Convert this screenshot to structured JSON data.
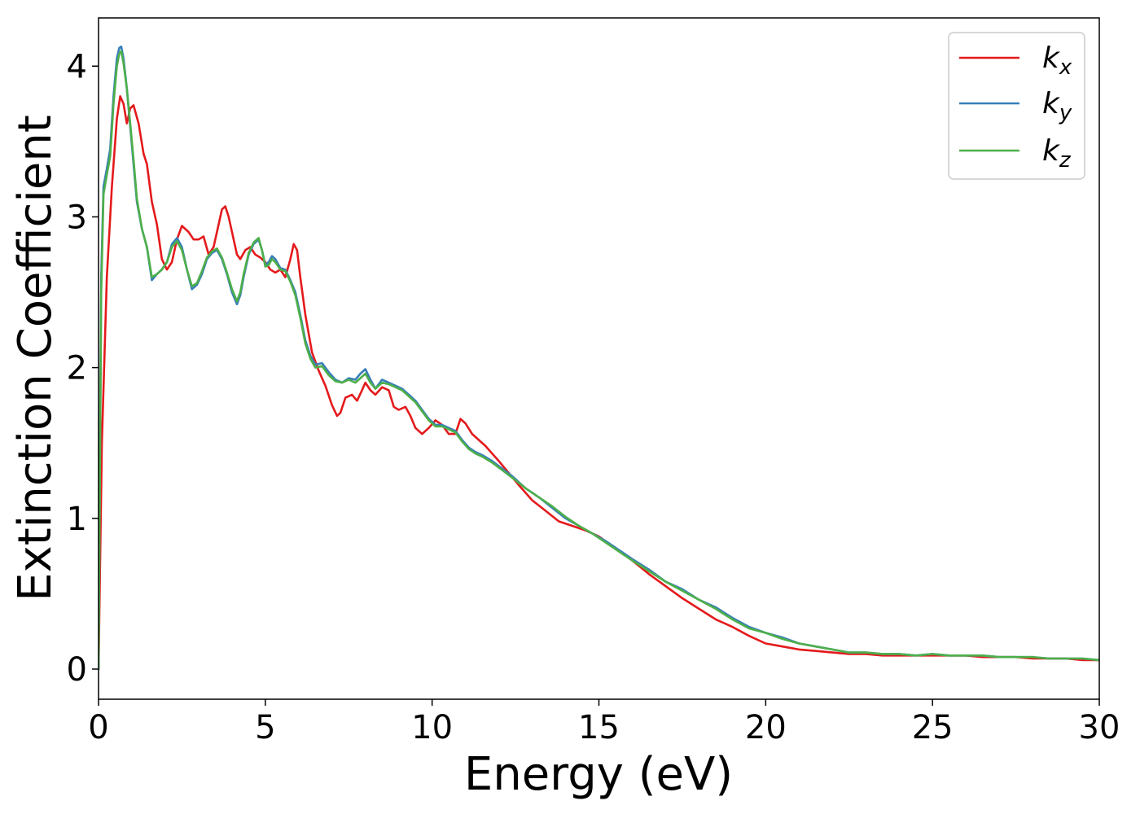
{
  "chart_data": {
    "type": "line",
    "xlabel": "Energy (eV)",
    "ylabel": "Extinction Coefficient",
    "xlim": [
      0,
      30
    ],
    "ylim": [
      -0.2,
      4.32
    ],
    "xticks": [
      0,
      5,
      10,
      15,
      20,
      25,
      30
    ],
    "xtick_labels": [
      "0",
      "5",
      "10",
      "15",
      "20",
      "25",
      "30"
    ],
    "yticks": [
      0,
      1,
      2,
      3,
      4
    ],
    "ytick_labels": [
      "0",
      "1",
      "2",
      "3",
      "4"
    ],
    "grid": false,
    "legend_position": "top-right",
    "series": [
      {
        "name": "k",
        "subscript": "x",
        "color": "#e41a1c",
        "x": [
          0,
          0.1,
          0.25,
          0.4,
          0.55,
          0.65,
          0.75,
          0.85,
          0.95,
          1.05,
          1.2,
          1.35,
          1.45,
          1.6,
          1.75,
          1.9,
          2.05,
          2.2,
          2.35,
          2.5,
          2.7,
          2.85,
          3.0,
          3.15,
          3.3,
          3.45,
          3.6,
          3.7,
          3.8,
          3.9,
          4.0,
          4.15,
          4.25,
          4.4,
          4.55,
          4.7,
          4.85,
          5.0,
          5.15,
          5.3,
          5.45,
          5.6,
          5.75,
          5.85,
          5.95,
          6.05,
          6.2,
          6.4,
          6.6,
          6.8,
          7.0,
          7.15,
          7.25,
          7.4,
          7.6,
          7.75,
          7.9,
          8.0,
          8.15,
          8.3,
          8.5,
          8.7,
          8.85,
          9.0,
          9.2,
          9.35,
          9.5,
          9.7,
          9.9,
          10.1,
          10.3,
          10.5,
          10.7,
          10.85,
          11.0,
          11.2,
          11.4,
          11.6,
          11.8,
          12.0,
          12.3,
          12.6,
          13.0,
          13.4,
          13.8,
          14.2,
          14.6,
          15.0,
          15.5,
          16.0,
          16.5,
          17.0,
          17.5,
          18.0,
          18.5,
          19.0,
          19.5,
          20.0,
          20.5,
          21.0,
          21.5,
          22.0,
          22.5,
          23.0,
          23.5,
          24.0,
          24.5,
          25.0,
          25.5,
          26.0,
          26.5,
          27.0,
          27.5,
          28.0,
          28.5,
          29.0,
          29.5,
          30.0
        ],
        "y": [
          0.0,
          1.5,
          2.6,
          3.2,
          3.65,
          3.8,
          3.75,
          3.62,
          3.72,
          3.74,
          3.62,
          3.42,
          3.35,
          3.1,
          2.95,
          2.72,
          2.65,
          2.7,
          2.85,
          2.94,
          2.9,
          2.85,
          2.85,
          2.87,
          2.75,
          2.8,
          2.95,
          3.05,
          3.07,
          3.0,
          2.9,
          2.75,
          2.72,
          2.78,
          2.8,
          2.75,
          2.73,
          2.7,
          2.65,
          2.63,
          2.65,
          2.6,
          2.72,
          2.82,
          2.78,
          2.6,
          2.35,
          2.1,
          1.98,
          1.88,
          1.75,
          1.68,
          1.7,
          1.8,
          1.82,
          1.78,
          1.85,
          1.9,
          1.85,
          1.82,
          1.87,
          1.85,
          1.74,
          1.72,
          1.74,
          1.68,
          1.6,
          1.56,
          1.6,
          1.65,
          1.62,
          1.56,
          1.56,
          1.66,
          1.63,
          1.56,
          1.52,
          1.48,
          1.43,
          1.38,
          1.3,
          1.22,
          1.12,
          1.05,
          0.98,
          0.95,
          0.92,
          0.88,
          0.8,
          0.72,
          0.63,
          0.55,
          0.47,
          0.4,
          0.33,
          0.28,
          0.22,
          0.17,
          0.15,
          0.13,
          0.12,
          0.11,
          0.1,
          0.1,
          0.09,
          0.09,
          0.09,
          0.09,
          0.09,
          0.09,
          0.08,
          0.08,
          0.08,
          0.07,
          0.07,
          0.07,
          0.06,
          0.06
        ]
      },
      {
        "name": "k",
        "subscript": "y",
        "color": "#377eb8",
        "x": [
          0,
          0.08,
          0.15,
          0.25,
          0.35,
          0.45,
          0.55,
          0.62,
          0.68,
          0.75,
          0.85,
          0.95,
          1.05,
          1.15,
          1.3,
          1.45,
          1.6,
          1.75,
          1.9,
          2.05,
          2.2,
          2.35,
          2.5,
          2.65,
          2.8,
          2.95,
          3.1,
          3.25,
          3.4,
          3.55,
          3.7,
          3.85,
          4.0,
          4.15,
          4.25,
          4.35,
          4.5,
          4.65,
          4.8,
          4.9,
          5.0,
          5.1,
          5.2,
          5.3,
          5.45,
          5.6,
          5.75,
          5.9,
          6.05,
          6.2,
          6.35,
          6.5,
          6.7,
          6.9,
          7.1,
          7.3,
          7.5,
          7.7,
          7.85,
          8.0,
          8.15,
          8.3,
          8.5,
          8.7,
          8.9,
          9.1,
          9.3,
          9.5,
          9.7,
          9.9,
          10.1,
          10.3,
          10.5,
          10.7,
          10.9,
          11.1,
          11.3,
          11.5,
          11.8,
          12.1,
          12.4,
          12.8,
          13.2,
          13.6,
          14.0,
          14.4,
          14.8,
          15.2,
          15.6,
          16.0,
          16.5,
          17.0,
          17.5,
          18.0,
          18.5,
          19.0,
          19.5,
          20.0,
          20.5,
          21.0,
          21.5,
          22.0,
          22.5,
          23.0,
          23.5,
          24.0,
          24.5,
          25.0,
          25.5,
          26.0,
          26.5,
          27.0,
          27.5,
          28.0,
          28.5,
          29.0,
          29.5,
          30.0
        ],
        "y": [
          0.0,
          2.6,
          3.2,
          3.32,
          3.45,
          3.8,
          4.05,
          4.12,
          4.13,
          4.05,
          3.85,
          3.6,
          3.35,
          3.1,
          2.92,
          2.8,
          2.58,
          2.62,
          2.65,
          2.7,
          2.82,
          2.86,
          2.8,
          2.65,
          2.52,
          2.55,
          2.62,
          2.72,
          2.76,
          2.78,
          2.72,
          2.62,
          2.5,
          2.42,
          2.48,
          2.6,
          2.75,
          2.82,
          2.85,
          2.78,
          2.68,
          2.7,
          2.74,
          2.72,
          2.66,
          2.65,
          2.58,
          2.5,
          2.35,
          2.18,
          2.08,
          2.02,
          2.03,
          1.97,
          1.92,
          1.9,
          1.93,
          1.92,
          1.96,
          1.99,
          1.92,
          1.86,
          1.92,
          1.9,
          1.88,
          1.86,
          1.82,
          1.78,
          1.72,
          1.66,
          1.62,
          1.62,
          1.6,
          1.58,
          1.52,
          1.47,
          1.44,
          1.42,
          1.38,
          1.33,
          1.28,
          1.2,
          1.14,
          1.07,
          1.0,
          0.95,
          0.9,
          0.85,
          0.79,
          0.73,
          0.66,
          0.58,
          0.53,
          0.46,
          0.41,
          0.34,
          0.28,
          0.24,
          0.21,
          0.17,
          0.15,
          0.13,
          0.11,
          0.11,
          0.1,
          0.1,
          0.09,
          0.1,
          0.09,
          0.09,
          0.09,
          0.08,
          0.08,
          0.08,
          0.07,
          0.07,
          0.07,
          0.06
        ]
      },
      {
        "name": "k",
        "subscript": "z",
        "color": "#4daf4a",
        "x": [
          0,
          0.08,
          0.15,
          0.25,
          0.35,
          0.45,
          0.55,
          0.62,
          0.68,
          0.75,
          0.85,
          0.95,
          1.05,
          1.15,
          1.3,
          1.45,
          1.6,
          1.75,
          1.9,
          2.05,
          2.2,
          2.35,
          2.5,
          2.65,
          2.8,
          2.95,
          3.1,
          3.25,
          3.4,
          3.55,
          3.7,
          3.85,
          4.0,
          4.15,
          4.25,
          4.35,
          4.5,
          4.65,
          4.8,
          4.9,
          5.0,
          5.1,
          5.2,
          5.3,
          5.45,
          5.6,
          5.75,
          5.9,
          6.05,
          6.2,
          6.35,
          6.5,
          6.7,
          6.9,
          7.1,
          7.3,
          7.5,
          7.7,
          7.85,
          8.0,
          8.15,
          8.3,
          8.5,
          8.7,
          8.9,
          9.1,
          9.3,
          9.5,
          9.7,
          9.9,
          10.1,
          10.3,
          10.5,
          10.7,
          10.9,
          11.1,
          11.3,
          11.5,
          11.8,
          12.1,
          12.4,
          12.8,
          13.2,
          13.6,
          14.0,
          14.4,
          14.8,
          15.2,
          15.6,
          16.0,
          16.5,
          17.0,
          17.5,
          18.0,
          18.5,
          19.0,
          19.5,
          20.0,
          20.5,
          21.0,
          21.5,
          22.0,
          22.5,
          23.0,
          23.5,
          24.0,
          24.5,
          25.0,
          25.5,
          26.0,
          26.5,
          27.0,
          27.5,
          28.0,
          28.5,
          29.0,
          29.5,
          30.0
        ],
        "y": [
          0.0,
          2.5,
          3.15,
          3.28,
          3.4,
          3.75,
          4.0,
          4.08,
          4.1,
          4.02,
          3.85,
          3.62,
          3.38,
          3.12,
          2.92,
          2.8,
          2.6,
          2.62,
          2.65,
          2.7,
          2.8,
          2.84,
          2.78,
          2.65,
          2.54,
          2.56,
          2.64,
          2.73,
          2.77,
          2.79,
          2.73,
          2.63,
          2.52,
          2.44,
          2.5,
          2.62,
          2.76,
          2.83,
          2.86,
          2.78,
          2.67,
          2.68,
          2.72,
          2.7,
          2.65,
          2.64,
          2.57,
          2.48,
          2.33,
          2.16,
          2.06,
          2.0,
          2.01,
          1.95,
          1.91,
          1.9,
          1.92,
          1.9,
          1.93,
          1.96,
          1.9,
          1.86,
          1.9,
          1.89,
          1.87,
          1.85,
          1.81,
          1.77,
          1.71,
          1.65,
          1.61,
          1.61,
          1.59,
          1.57,
          1.51,
          1.46,
          1.43,
          1.41,
          1.37,
          1.32,
          1.27,
          1.2,
          1.14,
          1.08,
          1.01,
          0.95,
          0.9,
          0.84,
          0.78,
          0.72,
          0.65,
          0.58,
          0.52,
          0.46,
          0.4,
          0.33,
          0.27,
          0.24,
          0.2,
          0.17,
          0.15,
          0.13,
          0.11,
          0.11,
          0.1,
          0.1,
          0.09,
          0.1,
          0.09,
          0.09,
          0.09,
          0.08,
          0.08,
          0.08,
          0.07,
          0.07,
          0.07,
          0.06
        ]
      }
    ]
  }
}
